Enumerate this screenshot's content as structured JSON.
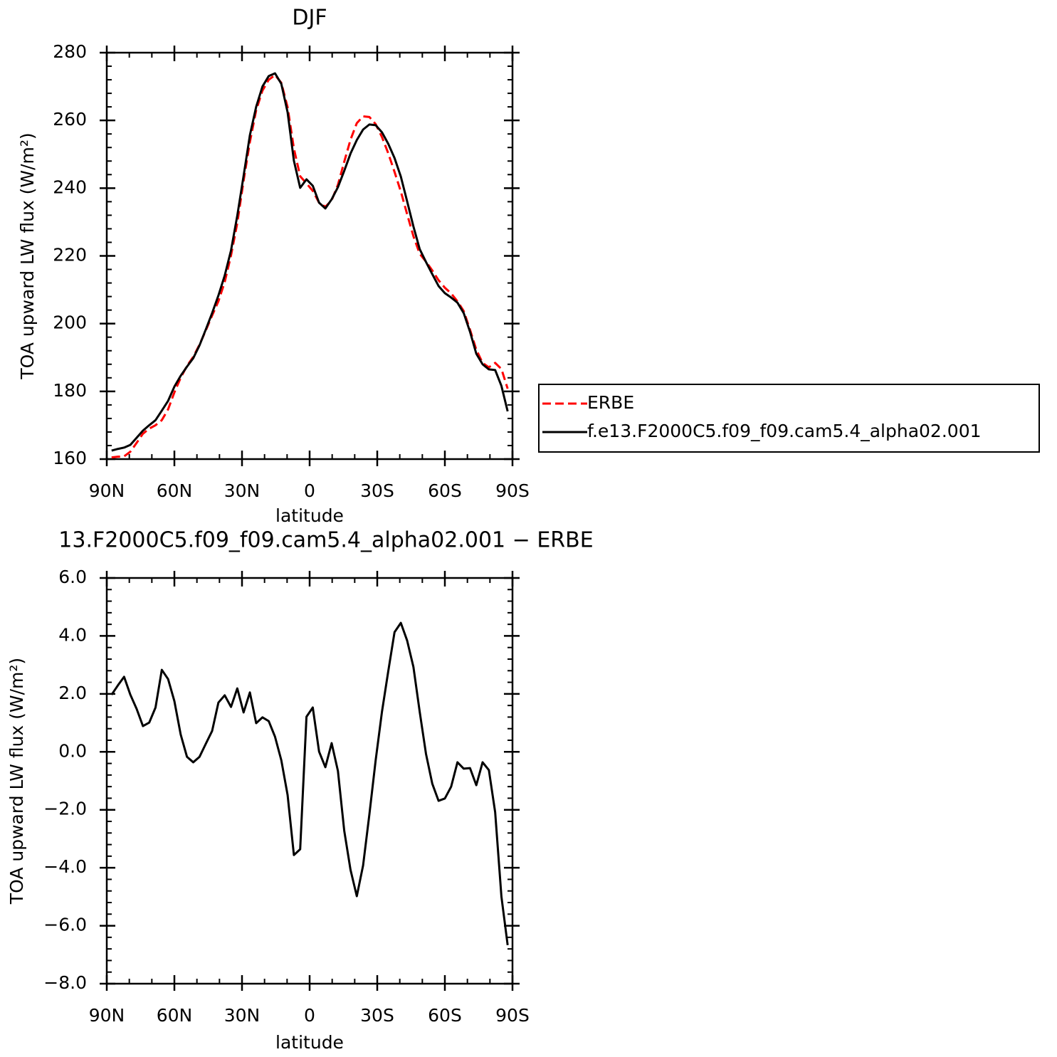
{
  "chart_data": [
    {
      "type": "line",
      "title": "DJF",
      "xlabel": "latitude",
      "ylabel": "TOA upward LW flux (W/m²)",
      "xlim": [
        90,
        -90
      ],
      "xticks": [
        {
          "value": 90,
          "label": "90N"
        },
        {
          "value": 60,
          "label": "60N"
        },
        {
          "value": 30,
          "label": "30N"
        },
        0,
        {
          "value": -30,
          "label": "30S"
        },
        {
          "value": -60,
          "label": "60S"
        },
        {
          "value": -90,
          "label": "90S"
        }
      ],
      "ylim": [
        160,
        280
      ],
      "yticks": [
        160,
        180,
        200,
        220,
        240,
        260,
        280
      ],
      "legend": "right",
      "x": [
        87.86,
        85.1,
        82.31,
        79.53,
        76.74,
        73.95,
        71.16,
        68.37,
        65.58,
        62.79,
        60.0,
        57.21,
        54.42,
        51.63,
        48.84,
        46.05,
        43.26,
        40.47,
        37.67,
        34.88,
        32.09,
        29.3,
        26.51,
        23.72,
        20.93,
        18.14,
        15.35,
        12.56,
        9.77,
        6.98,
        4.19,
        1.4,
        -1.4,
        -4.19,
        -6.98,
        -9.77,
        -12.56,
        -15.35,
        -18.14,
        -20.93,
        -23.72,
        -26.51,
        -29.3,
        -32.09,
        -34.88,
        -37.67,
        -40.47,
        -43.26,
        -46.05,
        -48.84,
        -51.63,
        -54.42,
        -57.21,
        -60.0,
        -62.79,
        -65.58,
        -68.37,
        -71.16,
        -73.95,
        -76.74,
        -79.53,
        -82.31,
        -85.1,
        -87.86
      ],
      "series": [
        {
          "name": "ERBE",
          "color": "#ff0000",
          "dash": "dashed",
          "values": [
            160.5,
            160.7,
            160.8,
            162.2,
            164.8,
            167.5,
            169.0,
            170.0,
            171.5,
            174.7,
            179.7,
            184.0,
            187.5,
            190.2,
            193.8,
            198.0,
            202.4,
            206.6,
            212.3,
            220.1,
            229.7,
            242.2,
            253.6,
            263.0,
            268.8,
            272.0,
            273.4,
            271.1,
            263.9,
            251.7,
            243.5,
            241.4,
            239.2,
            235.7,
            234.5,
            236.4,
            241.0,
            247.8,
            254.3,
            259.2,
            261.2,
            261.0,
            258.9,
            255.1,
            250.3,
            244.8,
            239.0,
            232.3,
            225.8,
            220.6,
            218.3,
            215.7,
            212.8,
            210.6,
            208.9,
            206.6,
            203.7,
            198.2,
            192.3,
            188.4,
            187.1,
            188.4,
            186.6,
            180.8
          ]
        },
        {
          "name": "f.e13.F2000C5.f09_f09.cam5.4_alpha02.001",
          "color": "#000000",
          "dash": "solid",
          "values": [
            162.5,
            163.0,
            163.4,
            164.2,
            166.3,
            168.4,
            170.0,
            171.5,
            174.3,
            177.2,
            181.4,
            184.6,
            187.3,
            189.8,
            193.6,
            198.3,
            203.1,
            208.3,
            214.2,
            221.6,
            231.9,
            243.6,
            255.6,
            264.0,
            270.0,
            273.1,
            273.9,
            270.8,
            262.4,
            248.1,
            240.1,
            242.6,
            240.7,
            235.7,
            234.0,
            236.7,
            240.3,
            245.1,
            250.2,
            254.2,
            257.3,
            258.8,
            258.6,
            256.5,
            253.1,
            248.9,
            243.4,
            236.1,
            228.7,
            222.0,
            218.2,
            214.6,
            211.1,
            209.0,
            207.7,
            206.2,
            203.1,
            197.6,
            191.1,
            188.0,
            186.5,
            186.3,
            181.6,
            174.1
          ]
        }
      ]
    },
    {
      "type": "line",
      "title": "13.F2000C5.f09_f09.cam5.4_alpha02.001 − ERBE",
      "xlabel": "latitude",
      "ylabel": "TOA upward LW flux (W/m²)",
      "xlim": [
        90,
        -90
      ],
      "xticks": [
        {
          "value": 90,
          "label": "90N"
        },
        {
          "value": 60,
          "label": "60N"
        },
        {
          "value": 30,
          "label": "30N"
        },
        0,
        {
          "value": -30,
          "label": "30S"
        },
        {
          "value": -60,
          "label": "60S"
        },
        {
          "value": -90,
          "label": "90S"
        }
      ],
      "ylim": [
        -8,
        6
      ],
      "yticks": [
        {
          "value": -8,
          "label": "−8.0"
        },
        {
          "value": -6,
          "label": "−6.0"
        },
        {
          "value": -4,
          "label": "−4.0"
        },
        {
          "value": -2,
          "label": "−2.0"
        },
        {
          "value": 0,
          "label": "0.0"
        },
        {
          "value": 2,
          "label": "2.0"
        },
        {
          "value": 4,
          "label": "4.0"
        },
        {
          "value": 6,
          "label": "6.0"
        }
      ],
      "x": [
        87.86,
        85.1,
        82.31,
        79.53,
        76.74,
        73.95,
        71.16,
        68.37,
        65.58,
        62.79,
        60.0,
        57.21,
        54.42,
        51.63,
        48.84,
        46.05,
        43.26,
        40.47,
        37.67,
        34.88,
        32.09,
        29.3,
        26.51,
        23.72,
        20.93,
        18.14,
        15.35,
        12.56,
        9.77,
        6.98,
        4.19,
        1.4,
        -1.4,
        -4.19,
        -6.98,
        -9.77,
        -12.56,
        -15.35,
        -18.14,
        -20.93,
        -23.72,
        -26.51,
        -29.3,
        -32.09,
        -34.88,
        -37.67,
        -40.47,
        -43.26,
        -46.05,
        -48.84,
        -51.63,
        -54.42,
        -57.21,
        -60.0,
        -62.79,
        -65.58,
        -68.37,
        -71.16,
        -73.95,
        -76.74,
        -79.53,
        -82.31,
        -85.1,
        -87.86
      ],
      "series": [
        {
          "color": "#000000",
          "dash": "solid",
          "values": [
            1.97,
            2.29,
            2.59,
            1.97,
            1.48,
            0.89,
            1.01,
            1.53,
            2.83,
            2.51,
            1.75,
            0.6,
            -0.17,
            -0.36,
            -0.17,
            0.28,
            0.72,
            1.7,
            1.95,
            1.55,
            2.19,
            1.36,
            2.05,
            0.99,
            1.19,
            1.06,
            0.52,
            -0.29,
            -1.49,
            -3.56,
            -3.36,
            1.21,
            1.53,
            0.01,
            -0.53,
            0.3,
            -0.66,
            -2.72,
            -4.07,
            -4.98,
            -3.92,
            -2.16,
            -0.29,
            1.38,
            2.78,
            4.13,
            4.45,
            3.84,
            2.93,
            1.38,
            -0.07,
            -1.1,
            -1.69,
            -1.61,
            -1.2,
            -0.36,
            -0.58,
            -0.56,
            -1.15,
            -0.36,
            -0.63,
            -2.08,
            -5.0,
            -6.67
          ]
        }
      ]
    }
  ]
}
